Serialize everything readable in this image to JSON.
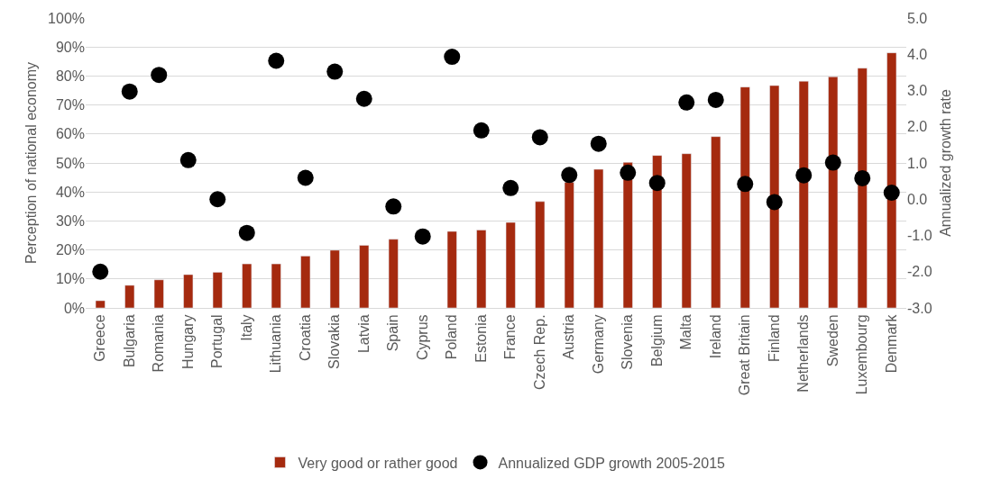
{
  "chart_data": {
    "type": "bar",
    "categories": [
      "Greece",
      "Bulgaria",
      "Romania",
      "Hungary",
      "Portugal",
      "Italy",
      "Lithuania",
      "Croatia",
      "Slovakia",
      "Latvia",
      "Spain",
      "Cyprus",
      "Poland",
      "Estonia",
      "France",
      "Czech Rep.",
      "Austria",
      "Germany",
      "Slovenia",
      "Belgium",
      "Malta",
      "Ireland",
      "Great Britain",
      "Finland",
      "Netherlands",
      "Sweden",
      "Luxembourg",
      "Denmark"
    ],
    "series": [
      {
        "name": "Very good or rather good",
        "color": "#a52a0f",
        "values": [
          2.5,
          7.8,
          9.7,
          11.5,
          12.3,
          15.2,
          15.2,
          17.9,
          19.9,
          21.6,
          23.7,
          null,
          26.4,
          26.9,
          29.5,
          36.7,
          43.3,
          47.8,
          50.2,
          52.6,
          53.2,
          59.1,
          76.2,
          76.7,
          78.2,
          79.7,
          82.7,
          88.0
        ]
      },
      {
        "name": "Annualized GDP growth 2005-2015",
        "type": "scatter",
        "axis": "y2",
        "color": "#000000",
        "marker": "circle",
        "values": [
          -2.0,
          2.97,
          3.43,
          1.08,
          0.0,
          -0.93,
          3.82,
          0.59,
          3.52,
          2.77,
          -0.2,
          -1.03,
          3.93,
          1.9,
          0.31,
          1.71,
          0.67,
          1.53,
          0.73,
          0.45,
          2.67,
          2.74,
          0.42,
          -0.08,
          0.66,
          1.01,
          0.58,
          0.18
        ]
      }
    ],
    "ylabel": "Perception of national economy",
    "y2label": "Annualized growth rate",
    "ylim": [
      0,
      100
    ],
    "yticks": [
      {
        "value": 0,
        "label": "0%"
      },
      {
        "value": 10,
        "label": "10%"
      },
      {
        "value": 20,
        "label": "20%"
      },
      {
        "value": 30,
        "label": "30%"
      },
      {
        "value": 40,
        "label": "40%"
      },
      {
        "value": 50,
        "label": "50%"
      },
      {
        "value": 60,
        "label": "60%"
      },
      {
        "value": 70,
        "label": "70%"
      },
      {
        "value": 80,
        "label": "80%"
      },
      {
        "value": 90,
        "label": "90%"
      },
      {
        "value": 100,
        "label": "100%"
      }
    ],
    "y2lim": [
      -3,
      5
    ],
    "y2ticks": [
      {
        "value": -3,
        "label": "-3.0"
      },
      {
        "value": -2,
        "label": "-2.0"
      },
      {
        "value": -1,
        "label": "-1.0"
      },
      {
        "value": 0,
        "label": "0.0"
      },
      {
        "value": 1,
        "label": "1.0"
      },
      {
        "value": 2,
        "label": "2.0"
      },
      {
        "value": 3,
        "label": "3.0"
      },
      {
        "value": 4,
        "label": "4.0"
      },
      {
        "value": 5,
        "label": "5.0"
      }
    ],
    "grid": "y",
    "legend": "bottom"
  }
}
